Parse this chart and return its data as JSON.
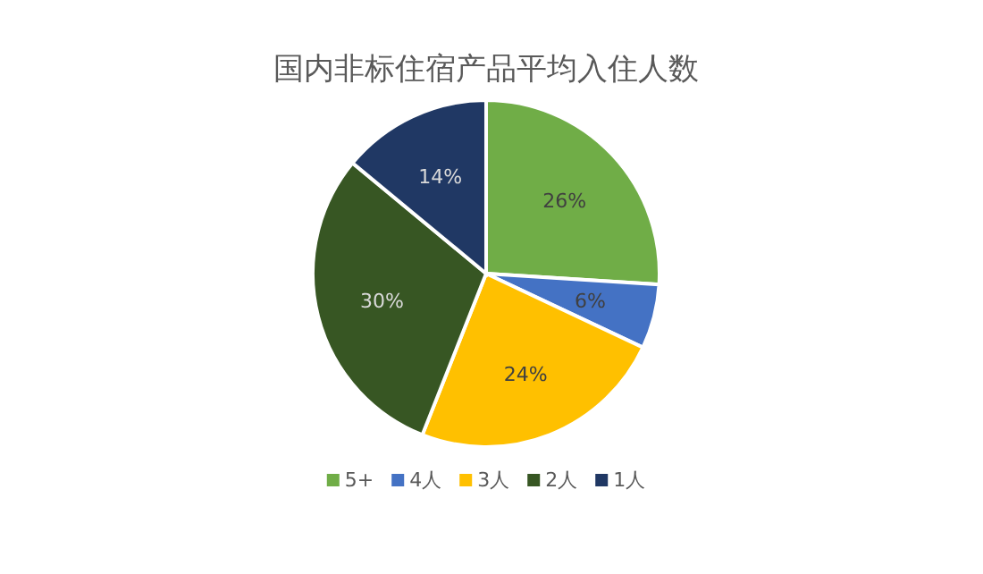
{
  "chart_data": {
    "type": "pie",
    "title": "国内非标住宿产品平均入住人数",
    "categories": [
      "5+",
      "4人",
      "3人",
      "2人",
      "1人"
    ],
    "values": [
      26,
      6,
      24,
      30,
      14
    ],
    "value_labels": [
      "26%",
      "6%",
      "24%",
      "30%",
      "14%"
    ],
    "colors": [
      "#70ad47",
      "#4472c4",
      "#ffc000",
      "#375623",
      "#203864"
    ],
    "legend": "bottom"
  }
}
